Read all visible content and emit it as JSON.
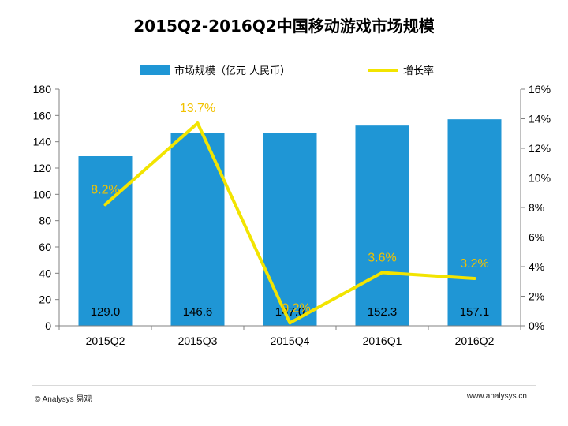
{
  "chart_data": {
    "type": "bar",
    "title": "2015Q2-2016Q2中国移动游戏市场规模",
    "categories": [
      "2015Q2",
      "2015Q3",
      "2015Q4",
      "2016Q1",
      "2016Q2"
    ],
    "series": [
      {
        "name": "市场规模（亿元 人民币）",
        "type": "bar",
        "axis": "left",
        "values": [
          129.0,
          146.6,
          147.0,
          152.3,
          157.1
        ],
        "labels": [
          "129.0",
          "146.6",
          "147.0",
          "152.3",
          "157.1"
        ]
      },
      {
        "name": "增长率",
        "type": "line",
        "axis": "right",
        "values": [
          8.2,
          13.7,
          0.2,
          3.6,
          3.2
        ],
        "labels": [
          "8.2%",
          "13.7%",
          "0.2%",
          "3.6%",
          "3.2%"
        ]
      }
    ],
    "ylim": [
      0,
      180
    ],
    "yticks": [
      "0",
      "20",
      "40",
      "60",
      "80",
      "100",
      "120",
      "140",
      "160",
      "180"
    ],
    "y2lim": [
      0,
      16
    ],
    "y2ticks": [
      "0%",
      "2%",
      "4%",
      "6%",
      "8%",
      "10%",
      "12%",
      "14%",
      "16%"
    ],
    "legend_position": "top",
    "grid": false
  },
  "colors": {
    "bar": "#1f96d5",
    "line": "#f2e400",
    "line_label": "#f2c200"
  },
  "footer": {
    "left": "© Analysys 易观",
    "right": "www.analysys.cn"
  }
}
